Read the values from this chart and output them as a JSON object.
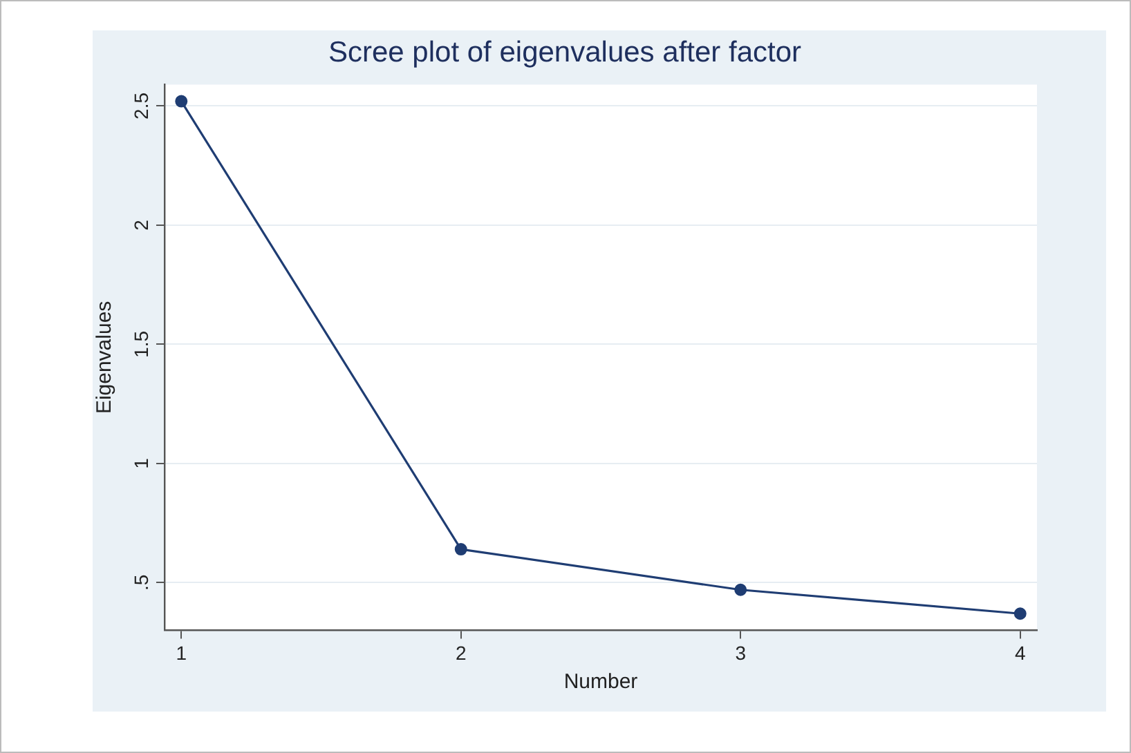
{
  "chart_data": {
    "type": "line",
    "title": "Scree plot of eigenvalues after factor",
    "xlabel": "Number",
    "ylabel": "Eigenvalues",
    "x": [
      1,
      2,
      3,
      4
    ],
    "series": [
      {
        "color": "#1f3d73",
        "values": [
          2.52,
          0.64,
          0.47,
          0.37
        ]
      }
    ],
    "xlim": [
      0.94,
      4.06
    ],
    "xticks": [
      1,
      2,
      3,
      4
    ],
    "ylim": [
      0.3,
      2.59
    ],
    "yticks": [
      {
        "value": 0.5,
        "label": ".5"
      },
      1,
      1.5,
      2,
      2.5
    ],
    "grid": "y",
    "legend": false,
    "marker": "circle",
    "line_style": "solid"
  }
}
